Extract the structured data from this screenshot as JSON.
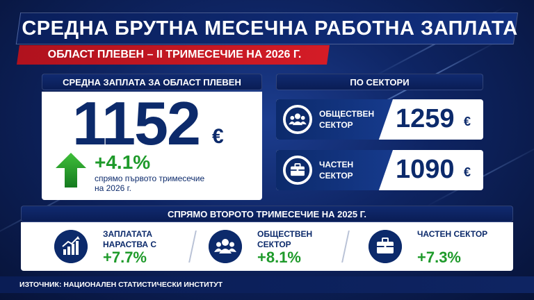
{
  "title": "СРЕДНА БРУТНА МЕСЕЧНА РАБОТНА ЗАПЛАТА",
  "subtitle": "ОБЛАСТ ПЛЕВЕН – II ТРИМЕСЕЧИЕ НА 2026 Г.",
  "main": {
    "header": "СРЕДНА ЗАПЛАТА ЗА ОБЛАСТ ПЛЕВЕН",
    "value": "1152",
    "currency": "€",
    "change": "+4.1%",
    "change_note": "спрямо първото тримесечие на 2026 г.",
    "arrow_icon": "arrow-up-icon"
  },
  "sectors": {
    "header": "ПО СЕКТОРИ",
    "items": [
      {
        "label": "ОБЩЕСТВЕН СЕКТОР",
        "value": "1259",
        "currency": "€",
        "icon": "people-icon"
      },
      {
        "label": "ЧАСТЕН СЕКТОР",
        "value": "1090",
        "currency": "€",
        "icon": "briefcase-icon"
      }
    ]
  },
  "comparison": {
    "header": "СПРЯМО ВТОРОТО ТРИМЕСЕЧИЕ НА 2025 Г.",
    "items": [
      {
        "label": "ЗАПЛАТАТА НАРАСТВА С",
        "value": "+7.7%",
        "icon": "growth-chart-icon"
      },
      {
        "label": "ОБЩЕСТВЕН СЕКТОР",
        "value": "+8.1%",
        "icon": "people-icon"
      },
      {
        "label": "ЧАСТЕН СЕКТОР",
        "value": "+7.3%",
        "icon": "briefcase-icon"
      }
    ]
  },
  "source": "ИЗТОЧНИК: НАЦИОНАЛЕН СТАТИСТИЧЕСКИ ИНСТИТУТ",
  "colors": {
    "navy": "#0c2a6b",
    "red": "#d41c26",
    "green": "#1e9a2a",
    "background": "#0e2462"
  }
}
